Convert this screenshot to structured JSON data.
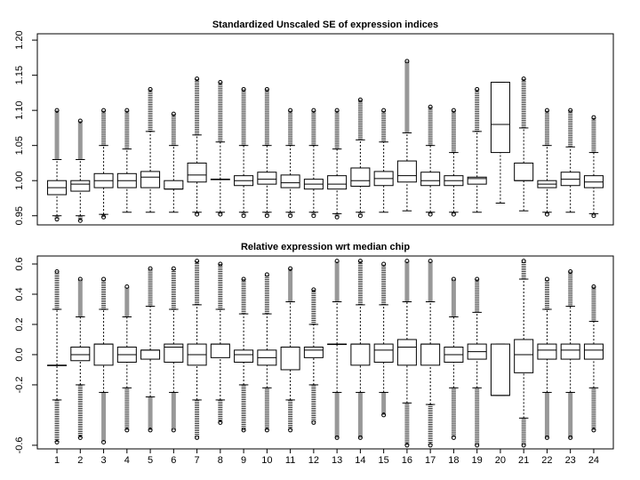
{
  "chart_data": [
    {
      "type": "boxplot",
      "title": "Standardized Unscaled SE of expression indices",
      "ylim": [
        0.937,
        1.209
      ],
      "yticks": [
        0.95,
        {
          "value": 1,
          "label": "1.00"
        },
        1.05,
        {
          "value": 1.1,
          "label": "1.10"
        },
        1.15,
        {
          "value": 1.2,
          "label": "1.20"
        }
      ],
      "color": "#000000",
      "series": [
        {
          "low": [
            0.95,
            0.95,
            0.952,
            0.955,
            0.955,
            0.955,
            0.955,
            0.955,
            0.955,
            0.955,
            0.955,
            0.955,
            0.953,
            0.955,
            0.955,
            0.957,
            0.955,
            0.955,
            0.955,
            0.968,
            0.957,
            0.955,
            0.955,
            0.953
          ],
          "q1": [
            0.98,
            0.985,
            0.99,
            0.99,
            0.99,
            0.988,
            0.998,
            1.002,
            0.993,
            0.995,
            0.99,
            0.988,
            0.988,
            0.992,
            0.993,
            0.998,
            0.993,
            0.993,
            0.995,
            1.04,
            1.0,
            0.99,
            0.993,
            0.99
          ],
          "median": [
            0.99,
            0.995,
            1.0,
            1.0,
            1.005,
            0.988,
            1.008,
            1.002,
            1.0,
            1.002,
            0.997,
            0.995,
            0.995,
            1.0,
            1.003,
            1.007,
            1.0,
            1.0,
            1.003,
            1.08,
            1.0,
            0.995,
            1.002,
            0.998
          ],
          "q3": [
            1.0,
            1.0,
            1.01,
            1.01,
            1.013,
            1.0,
            1.025,
            1.002,
            1.007,
            1.012,
            1.008,
            1.002,
            1.007,
            1.018,
            1.013,
            1.028,
            1.012,
            1.007,
            1.005,
            1.14,
            1.025,
            1.0,
            1.012,
            1.007
          ],
          "high": [
            1.03,
            1.03,
            1.05,
            1.045,
            1.07,
            1.05,
            1.065,
            1.055,
            1.05,
            1.05,
            1.05,
            1.05,
            1.045,
            1.058,
            1.055,
            1.068,
            1.05,
            1.04,
            1.07,
            1.14,
            1.075,
            1.05,
            1.048,
            1.04
          ],
          "out_high": [
            1.1,
            1.085,
            1.1,
            1.1,
            1.13,
            1.095,
            1.145,
            1.14,
            1.13,
            1.13,
            1.1,
            1.1,
            1.1,
            1.115,
            1.1,
            1.17,
            1.105,
            1.1,
            1.13,
            null,
            1.145,
            1.1,
            1.1,
            1.09
          ],
          "out_low": [
            0.945,
            0.943,
            0.948,
            null,
            null,
            null,
            0.952,
            0.952,
            0.95,
            0.95,
            0.95,
            0.95,
            0.948,
            0.95,
            null,
            null,
            0.952,
            0.952,
            null,
            null,
            null,
            0.952,
            null,
            0.95
          ]
        }
      ]
    },
    {
      "type": "boxplot",
      "title": "Relative expression wrt median chip",
      "ylim": [
        -0.624,
        0.653
      ],
      "yticks": [
        -0.6,
        -0.2,
        {
          "value": 0,
          "label": "0.0"
        },
        0.2,
        0.4,
        0.6
      ],
      "color": "#000000",
      "categories": [
        "1",
        "2",
        "3",
        "4",
        "5",
        "6",
        "7",
        "8",
        "9",
        "10",
        "11",
        "12",
        "13",
        "14",
        "15",
        "16",
        "17",
        "18",
        "19",
        "20",
        "21",
        "22",
        "23",
        "24"
      ],
      "series": [
        {
          "low": [
            -0.3,
            -0.2,
            -0.25,
            -0.22,
            -0.28,
            -0.25,
            -0.3,
            -0.3,
            -0.2,
            -0.22,
            -0.3,
            -0.2,
            -0.25,
            -0.25,
            -0.25,
            -0.32,
            -0.33,
            -0.22,
            -0.22,
            -0.27,
            -0.42,
            -0.25,
            -0.25,
            -0.22
          ],
          "q1": [
            -0.07,
            -0.04,
            -0.07,
            -0.05,
            -0.03,
            -0.05,
            -0.07,
            -0.02,
            -0.05,
            -0.07,
            -0.1,
            -0.02,
            0.07,
            -0.07,
            -0.05,
            -0.07,
            -0.07,
            -0.05,
            -0.03,
            -0.27,
            -0.12,
            -0.03,
            -0.03,
            -0.03
          ],
          "median": [
            -0.07,
            0.0,
            0.07,
            0.0,
            0.03,
            0.05,
            0.0,
            0.07,
            0.0,
            -0.02,
            0.05,
            0.03,
            0.07,
            0.07,
            0.03,
            0.05,
            0.07,
            0.0,
            0.02,
            -0.27,
            0.0,
            0.03,
            0.03,
            0.03
          ],
          "q3": [
            -0.07,
            0.05,
            0.07,
            0.05,
            0.03,
            0.07,
            0.07,
            0.07,
            0.03,
            0.03,
            0.05,
            0.05,
            0.07,
            0.07,
            0.07,
            0.1,
            0.07,
            0.05,
            0.07,
            0.07,
            0.1,
            0.07,
            0.07,
            0.07
          ],
          "high": [
            0.3,
            0.25,
            0.3,
            0.25,
            0.32,
            0.3,
            0.33,
            0.3,
            0.27,
            0.27,
            0.35,
            0.2,
            0.35,
            0.33,
            0.33,
            0.35,
            0.35,
            0.25,
            0.28,
            0.07,
            0.5,
            0.3,
            0.32,
            0.22
          ],
          "out_high": [
            0.55,
            0.5,
            0.5,
            0.45,
            0.57,
            0.57,
            0.62,
            0.6,
            0.5,
            0.53,
            0.57,
            0.43,
            0.62,
            0.62,
            0.6,
            0.62,
            0.62,
            0.5,
            0.5,
            null,
            0.62,
            0.5,
            0.55,
            0.45
          ],
          "out_low": [
            -0.58,
            -0.55,
            -0.58,
            -0.5,
            -0.5,
            -0.5,
            -0.55,
            -0.45,
            -0.5,
            -0.5,
            -0.5,
            -0.45,
            -0.55,
            -0.55,
            -0.4,
            -0.6,
            -0.6,
            -0.55,
            -0.6,
            null,
            -0.6,
            -0.55,
            -0.55,
            -0.5
          ]
        }
      ]
    }
  ]
}
